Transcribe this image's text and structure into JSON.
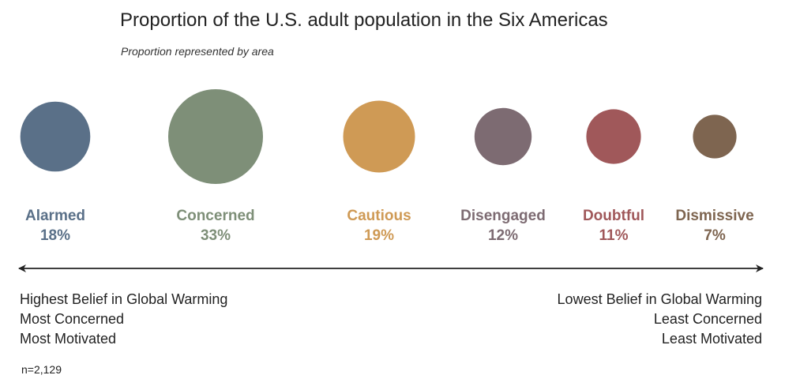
{
  "chart_data": {
    "type": "bubble",
    "title": "Proportion of the U.S. adult population in the Six Americas",
    "subtitle": "Proportion represented by area",
    "segments": [
      {
        "name": "Alarmed",
        "value": 18,
        "label": "18%",
        "color": "#5a7088"
      },
      {
        "name": "Concerned",
        "value": 33,
        "label": "33%",
        "color": "#7e8f78"
      },
      {
        "name": "Cautious",
        "value": 19,
        "label": "19%",
        "color": "#cf9a55"
      },
      {
        "name": "Disengaged",
        "value": 12,
        "label": "12%",
        "color": "#7d6b72"
      },
      {
        "name": "Doubtful",
        "value": 11,
        "label": "11%",
        "color": "#a0585a"
      },
      {
        "name": "Dismissive",
        "value": 7,
        "label": "7%",
        "color": "#7e6550"
      }
    ],
    "left_end": [
      "Highest Belief in Global Warming",
      "Most Concerned",
      "Most Motivated"
    ],
    "right_end": [
      "Lowest Belief in Global Warming",
      "Least Concerned",
      "Least Motivated"
    ],
    "note": "n=2,129"
  }
}
